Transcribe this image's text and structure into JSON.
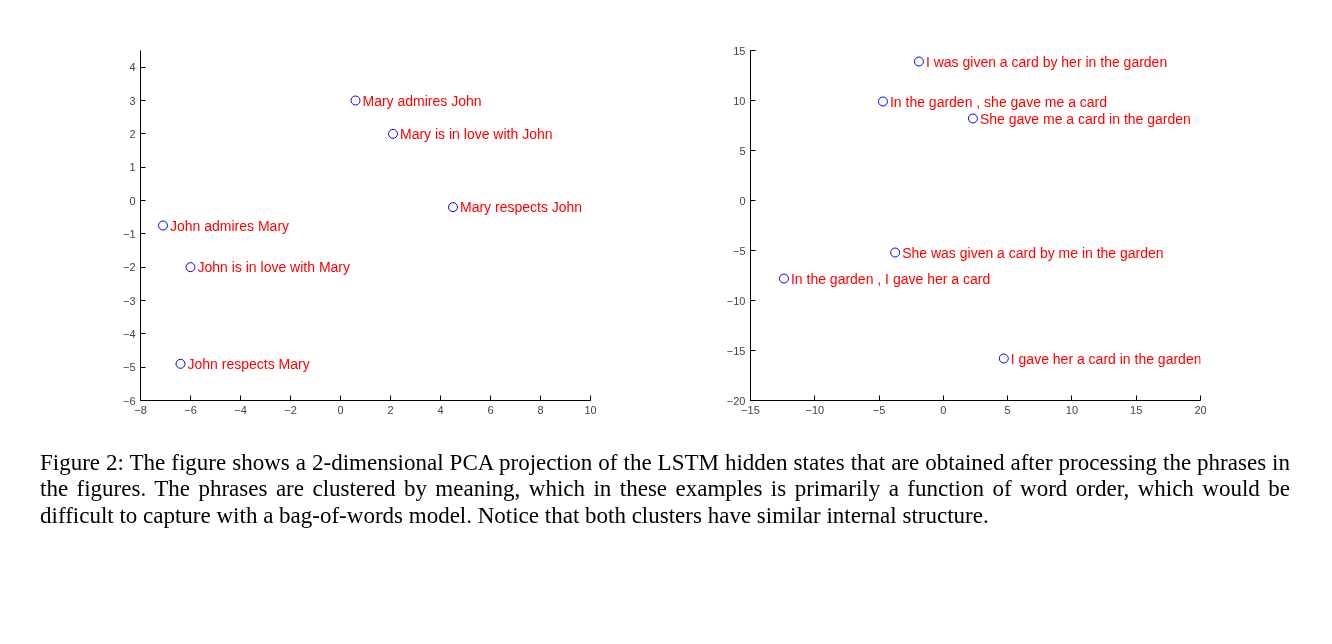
{
  "chart_data": [
    {
      "type": "scatter",
      "marker": "circle",
      "grid": false,
      "series": [
        {
          "color": "#0000ff",
          "x": [
            0.6,
            2.1,
            4.5,
            -7.1,
            -6.0,
            -6.4
          ],
          "values": [
            3.0,
            2.0,
            -0.2,
            -0.75,
            -2.0,
            -4.9
          ]
        }
      ],
      "xlim": [
        -8,
        10
      ],
      "xticks": [
        -8,
        -6,
        -4,
        -2,
        0,
        2,
        4,
        6,
        8,
        10
      ],
      "ylim": [
        -6,
        4.5
      ],
      "yticks": [
        -6,
        -5,
        -4,
        -3,
        -2,
        -1,
        0,
        1,
        2,
        3,
        4
      ],
      "annotations": [
        {
          "text": "Mary admires John",
          "x": 0.6,
          "y": 3.0
        },
        {
          "text": "Mary is in love with John",
          "x": 2.1,
          "y": 2.0
        },
        {
          "text": "Mary respects John",
          "x": 4.5,
          "y": -0.2
        },
        {
          "text": "John admires Mary",
          "x": -7.1,
          "y": -0.75
        },
        {
          "text": "John is in love with Mary",
          "x": -6.0,
          "y": -2.0
        },
        {
          "text": "John respects Mary",
          "x": -6.4,
          "y": -4.9
        },
        "Figure 2: The figure shows a 2-dimensional PCA projection of the LSTM hidden states that are obtained after processing the phrases in the figures. The phrases are clustered by meaning, which in these examples is primarily a function of word order, which would be difficult to capture with a bag-of-words model. Notice that both clusters have similar internal structure."
      ]
    },
    {
      "type": "scatter",
      "marker": "circle",
      "grid": false,
      "series": [
        {
          "color": "#0000ff",
          "x": [
            -1.9,
            -4.7,
            2.3,
            -3.75,
            -12.4,
            4.7
          ],
          "values": [
            13.9,
            9.9,
            8.2,
            -5.2,
            -7.8,
            -15.8
          ]
        }
      ],
      "xlim": [
        -15,
        20
      ],
      "xticks": [
        -15,
        -10,
        -5,
        0,
        5,
        10,
        15,
        20
      ],
      "ylim": [
        -20,
        15
      ],
      "yticks": [
        -20,
        -15,
        -10,
        -5,
        0,
        5,
        10,
        15
      ],
      "annotations": [
        {
          "text": "I was given a card by her in the garden",
          "x": -1.9,
          "y": 13.9
        },
        {
          "text": "In the garden , she gave me a card",
          "x": -4.7,
          "y": 9.9
        },
        {
          "text": "She gave me a card in the garden",
          "x": 2.3,
          "y": 8.2
        },
        {
          "text": "She was given a card by me in the garden",
          "x": -3.75,
          "y": -5.2
        },
        {
          "text": "In the garden , I gave her a card",
          "x": -12.4,
          "y": -7.8
        },
        {
          "text": "I gave her a card in the garden",
          "x": 4.7,
          "y": -15.8
        }
      ]
    }
  ]
}
